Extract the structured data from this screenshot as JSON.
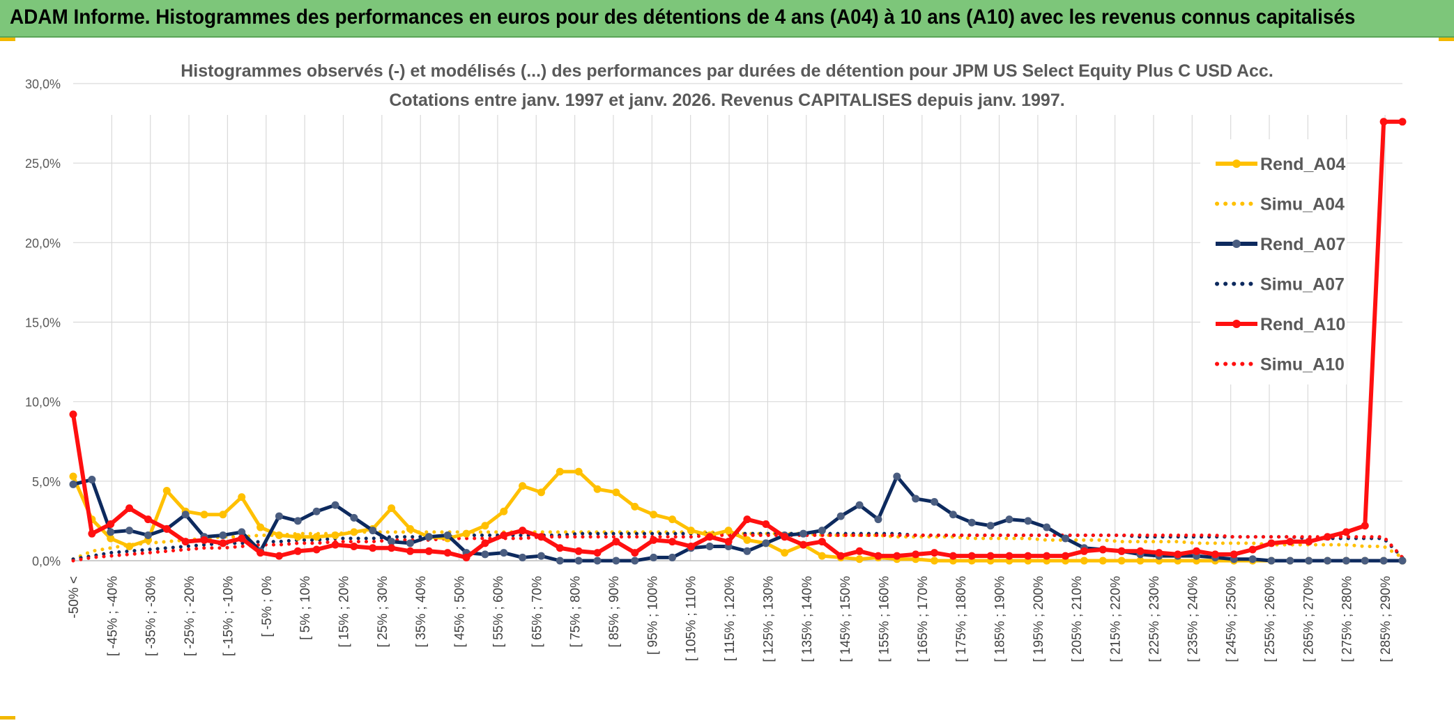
{
  "banner": {
    "title": "ADAM Informe. Histogrammes des performances en euros pour des détentions de 4 ans (A04) à 10 ans (A10) avec les revenus connus capitalisés"
  },
  "colors": {
    "banner_bg": "#7dc67a",
    "A04": "#ffc000",
    "A07": "#0d2a5e",
    "A10": "#ff1010",
    "grid": "#d9d9d9"
  },
  "chart_data": {
    "type": "line",
    "title": "Histogrammes observés (-) et modélisés (...) des performances par durées de détention pour JPM US Select Equity Plus C USD Acc.",
    "subtitle": "Cotations entre janv. 1997 et janv. 2026. Revenus CAPITALISES depuis janv. 1997.",
    "y_ticks": [
      "0,0%",
      "5,0%",
      "10,0%",
      "15,0%",
      "20,0%",
      "25,0%",
      "30,0%"
    ],
    "ylim": [
      0,
      30
    ],
    "grid": true,
    "legend_position": "top-right",
    "x_labels": [
      "-50% <",
      "[ -45% ; -40%",
      "[ -35% ; -30%",
      "[ -25% ; -20%",
      "[ -15% ; -10%",
      "[ -5% ; 0%",
      "[ 5% ; 10%",
      "[ 15% ; 20%",
      "[ 25% ; 30%",
      "[ 35% ; 40%",
      "[ 45% ; 50%",
      "[ 55% ; 60%",
      "[ 65% ; 70%",
      "[ 75% ; 80%",
      "[ 85% ; 90%",
      "[ 95% ; 100%",
      "[ 105% ; 110%",
      "[ 115% ; 120%",
      "[ 125% ; 130%",
      "[ 135% ; 140%",
      "[ 145% ; 150%",
      "[ 155% ; 160%",
      "[ 165% ; 170%",
      "[ 175% ; 180%",
      "[ 185% ; 190%",
      "[ 195% ; 200%",
      "[ 205% ; 210%",
      "[ 215% ; 220%",
      "[ 225% ; 230%",
      "[ 235% ; 240%",
      "[ 245% ; 250%",
      "[ 255% ; 260%",
      "[ 265% ; 270%",
      "[ 275% ; 280%",
      "[ 285% ; 290%"
    ],
    "series": [
      {
        "name": "Rend_A04",
        "style": "solid",
        "color": "#ffc000",
        "values": [
          5.3,
          2.6,
          1.4,
          0.9,
          1.3,
          4.4,
          3.1,
          2.9,
          2.9,
          4.0,
          2.1,
          1.6,
          1.5,
          1.5,
          1.6,
          1.8,
          2.0,
          3.3,
          2.0,
          1.5,
          1.4,
          1.7,
          2.2,
          3.1,
          4.7,
          4.3,
          5.6,
          5.6,
          4.5,
          4.3,
          3.4,
          2.9,
          2.6,
          1.9,
          1.6,
          1.9,
          1.3,
          1.1,
          0.5,
          1.0,
          0.3,
          0.2,
          0.1,
          0.2,
          0.1,
          0.1,
          0.0,
          0.0,
          0.0,
          0.0,
          0.0,
          0.0,
          0.0,
          0.0,
          0.0,
          0.0,
          0.0,
          0.0,
          0.0,
          0.0,
          0.0,
          0.0,
          0.0,
          0.0,
          0.0,
          0.0,
          0.0,
          0.0,
          0.0,
          0.0,
          0.0,
          0.0
        ]
      },
      {
        "name": "Simu_A04",
        "style": "dotted",
        "color": "#ffc000",
        "values": [
          0.1,
          0.6,
          0.8,
          1.0,
          1.1,
          1.2,
          1.3,
          1.4,
          1.5,
          1.5,
          1.6,
          1.6,
          1.7,
          1.7,
          1.7,
          1.8,
          1.8,
          1.8,
          1.8,
          1.8,
          1.8,
          1.8,
          1.8,
          1.8,
          1.8,
          1.8,
          1.8,
          1.8,
          1.8,
          1.8,
          1.8,
          1.8,
          1.8,
          1.8,
          1.8,
          1.7,
          1.7,
          1.7,
          1.7,
          1.7,
          1.6,
          1.6,
          1.6,
          1.6,
          1.5,
          1.5,
          1.5,
          1.5,
          1.4,
          1.4,
          1.4,
          1.4,
          1.3,
          1.3,
          1.3,
          1.3,
          1.2,
          1.2,
          1.2,
          1.2,
          1.1,
          1.1,
          1.1,
          1.1,
          1.0,
          1.0,
          1.0,
          1.0,
          1.0,
          0.9,
          0.9,
          0.2
        ]
      },
      {
        "name": "Rend_A07",
        "style": "solid",
        "color": "#0d2a5e",
        "values": [
          4.8,
          5.1,
          1.8,
          1.9,
          1.6,
          2.0,
          2.9,
          1.5,
          1.6,
          1.8,
          0.6,
          2.8,
          2.5,
          3.1,
          3.5,
          2.7,
          1.9,
          1.2,
          1.1,
          1.5,
          1.6,
          0.5,
          0.4,
          0.5,
          0.2,
          0.3,
          0.0,
          0.0,
          0.0,
          0.0,
          0.0,
          0.2,
          0.2,
          0.8,
          0.9,
          0.9,
          0.6,
          1.1,
          1.6,
          1.7,
          1.9,
          2.8,
          3.5,
          2.6,
          5.3,
          3.9,
          3.7,
          2.9,
          2.4,
          2.2,
          2.6,
          2.5,
          2.1,
          1.4,
          0.8,
          0.7,
          0.6,
          0.4,
          0.3,
          0.3,
          0.3,
          0.2,
          0.1,
          0.1,
          0.0,
          0.0,
          0.0,
          0.0,
          0.0,
          0.0,
          0.0,
          0.0
        ]
      },
      {
        "name": "Simu_A07",
        "style": "dotted",
        "color": "#0d2a5e",
        "values": [
          0.1,
          0.3,
          0.5,
          0.6,
          0.7,
          0.8,
          0.9,
          1.0,
          1.1,
          1.1,
          1.2,
          1.2,
          1.3,
          1.3,
          1.4,
          1.4,
          1.4,
          1.5,
          1.5,
          1.5,
          1.5,
          1.6,
          1.6,
          1.6,
          1.6,
          1.6,
          1.6,
          1.7,
          1.7,
          1.7,
          1.7,
          1.7,
          1.7,
          1.7,
          1.7,
          1.7,
          1.7,
          1.7,
          1.7,
          1.7,
          1.7,
          1.7,
          1.7,
          1.7,
          1.7,
          1.6,
          1.6,
          1.6,
          1.6,
          1.6,
          1.6,
          1.6,
          1.6,
          1.6,
          1.6,
          1.6,
          1.6,
          1.5,
          1.5,
          1.5,
          1.5,
          1.5,
          1.5,
          1.5,
          1.5,
          1.5,
          1.4,
          1.4,
          1.4,
          1.4,
          1.4,
          0.2
        ]
      },
      {
        "name": "Rend_A10",
        "style": "solid",
        "color": "#ff1010",
        "values": [
          9.2,
          1.7,
          2.3,
          3.3,
          2.6,
          2.0,
          1.2,
          1.3,
          1.1,
          1.4,
          0.5,
          0.3,
          0.6,
          0.7,
          1.0,
          0.9,
          0.8,
          0.8,
          0.6,
          0.6,
          0.5,
          0.2,
          1.1,
          1.6,
          1.9,
          1.5,
          0.8,
          0.6,
          0.5,
          1.2,
          0.5,
          1.3,
          1.2,
          0.9,
          1.5,
          1.2,
          2.6,
          2.3,
          1.5,
          1.0,
          1.2,
          0.3,
          0.6,
          0.3,
          0.3,
          0.4,
          0.5,
          0.3,
          0.3,
          0.3,
          0.3,
          0.3,
          0.3,
          0.3,
          0.6,
          0.7,
          0.6,
          0.6,
          0.5,
          0.4,
          0.6,
          0.4,
          0.4,
          0.7,
          1.1,
          1.2,
          1.2,
          1.5,
          1.8,
          2.2,
          27.6,
          27.6
        ]
      },
      {
        "name": "Simu_A10",
        "style": "dotted",
        "color": "#ff1010",
        "values": [
          0.0,
          0.2,
          0.3,
          0.4,
          0.5,
          0.6,
          0.7,
          0.8,
          0.8,
          0.9,
          1.0,
          1.0,
          1.1,
          1.1,
          1.2,
          1.2,
          1.2,
          1.3,
          1.3,
          1.3,
          1.4,
          1.4,
          1.4,
          1.4,
          1.4,
          1.5,
          1.5,
          1.5,
          1.5,
          1.5,
          1.5,
          1.5,
          1.5,
          1.5,
          1.6,
          1.6,
          1.6,
          1.6,
          1.6,
          1.6,
          1.6,
          1.6,
          1.6,
          1.6,
          1.6,
          1.6,
          1.6,
          1.6,
          1.6,
          1.6,
          1.6,
          1.6,
          1.6,
          1.6,
          1.6,
          1.6,
          1.6,
          1.6,
          1.6,
          1.6,
          1.6,
          1.6,
          1.5,
          1.5,
          1.5,
          1.5,
          1.5,
          1.5,
          1.5,
          1.5,
          1.5,
          0.2
        ]
      }
    ]
  }
}
